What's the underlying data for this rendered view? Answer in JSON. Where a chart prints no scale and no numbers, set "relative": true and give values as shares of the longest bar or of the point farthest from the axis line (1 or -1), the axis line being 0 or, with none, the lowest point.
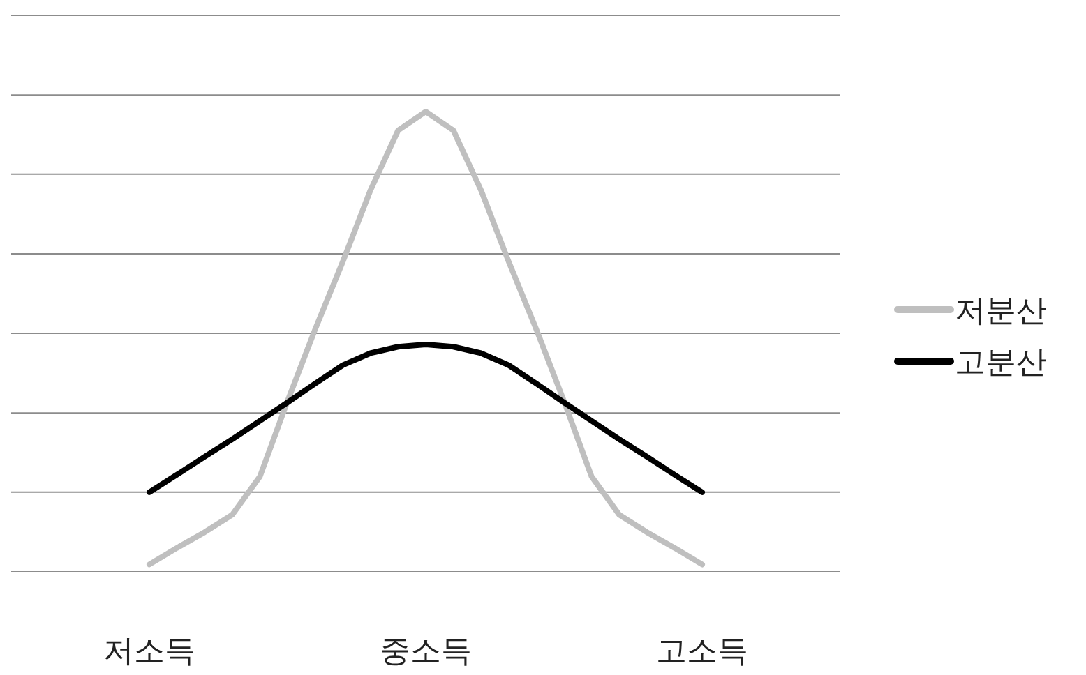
{
  "chart_data": {
    "type": "line",
    "relative": true,
    "categories": [
      "저소득",
      null,
      null,
      null,
      null,
      null,
      null,
      null,
      null,
      null,
      "중소득",
      null,
      null,
      null,
      null,
      null,
      null,
      null,
      null,
      null,
      "고소득"
    ],
    "series": [
      {
        "name": "저분산",
        "color": "#bfbfbf",
        "values": [
          0.016,
          0.052,
          0.086,
          0.124,
          0.207,
          0.371,
          0.527,
          0.674,
          0.829,
          0.959,
          1.0,
          0.959,
          0.829,
          0.674,
          0.527,
          0.371,
          0.207,
          0.124,
          0.086,
          0.052,
          0.016
        ]
      },
      {
        "name": "고분산",
        "color": "#000000",
        "values": [
          0.173,
          0.211,
          0.25,
          0.288,
          0.328,
          0.368,
          0.409,
          0.449,
          0.475,
          0.489,
          0.494,
          0.489,
          0.475,
          0.449,
          0.409,
          0.368,
          0.328,
          0.288,
          0.25,
          0.211,
          0.173
        ]
      }
    ],
    "ref_lines": [
      {
        "axis": "y",
        "value": 0,
        "color": "#8c8c8c"
      },
      {
        "axis": "y",
        "value": 0.173,
        "color": "#8c8c8c"
      },
      {
        "axis": "y",
        "value": 0.345,
        "color": "#8c8c8c"
      },
      {
        "axis": "y",
        "value": 0.518,
        "color": "#8c8c8c"
      },
      {
        "axis": "y",
        "value": 0.691,
        "color": "#8c8c8c"
      },
      {
        "axis": "y",
        "value": 0.864,
        "color": "#8c8c8c"
      },
      {
        "axis": "y",
        "value": 1.036,
        "color": "#8c8c8c"
      },
      {
        "axis": "y",
        "value": 1.209,
        "color": "#8c8c8c"
      }
    ],
    "legend": "right",
    "marker": "none",
    "line_style": "solid"
  }
}
